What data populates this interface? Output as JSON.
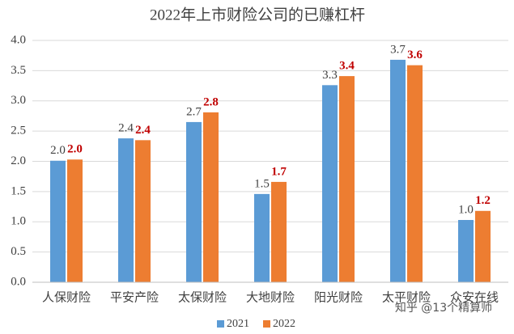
{
  "chart_data": {
    "type": "bar",
    "title": "2022年上市财险公司的已赚杠杆",
    "categories": [
      "人保财险",
      "平安产险",
      "太保财险",
      "大地财险",
      "阳光财险",
      "太平财险",
      "众安在线"
    ],
    "series": [
      {
        "name": "2021",
        "color": "#5b9bd5",
        "values": [
          2.01,
          2.38,
          2.65,
          1.46,
          3.26,
          3.68,
          1.03
        ],
        "value_labels": [
          "2.0",
          "2.4",
          "2.7",
          "1.5",
          "3.3",
          "3.7",
          "1.0"
        ]
      },
      {
        "name": "2022",
        "color": "#ed7d31",
        "label_color": "#c00000",
        "values": [
          2.03,
          2.35,
          2.81,
          1.66,
          3.41,
          3.59,
          1.18
        ],
        "value_labels": [
          "2.0",
          "2.4",
          "2.8",
          "1.7",
          "3.4",
          "3.6",
          "1.2"
        ]
      }
    ],
    "ylim": [
      0,
      4
    ],
    "yticks": [
      {
        "value": 0,
        "label": "0.0"
      },
      {
        "value": 0.5,
        "label": "0.5"
      },
      {
        "value": 1,
        "label": "1.0"
      },
      {
        "value": 1.5,
        "label": "1.5"
      },
      {
        "value": 2,
        "label": "2.0"
      },
      {
        "value": 2.5,
        "label": "2.5"
      },
      {
        "value": 3,
        "label": "3.0"
      },
      {
        "value": 3.5,
        "label": "3.5"
      },
      {
        "value": 4,
        "label": "4.0"
      }
    ],
    "grid": true,
    "legend": "bottom",
    "watermark": "知乎 @13个精算师"
  }
}
